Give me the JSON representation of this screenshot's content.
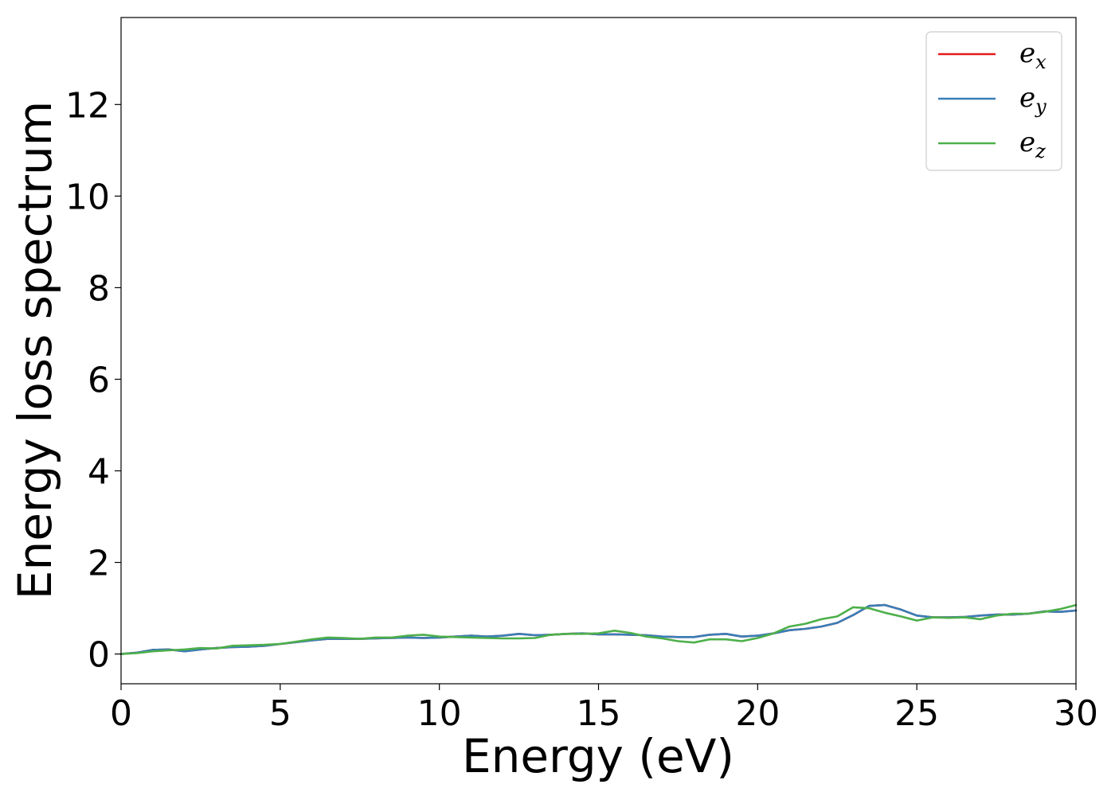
{
  "chart_data": {
    "type": "line",
    "xlabel": "Energy (eV)",
    "ylabel": "Energy loss spectrum",
    "xlim": [
      0,
      30
    ],
    "ylim": [
      -0.65,
      13.9
    ],
    "xticks": [
      "0",
      "5",
      "10",
      "15",
      "20",
      "25",
      "30"
    ],
    "yticks": [
      "0",
      "2",
      "4",
      "6",
      "8",
      "10",
      "12"
    ],
    "grid": false,
    "legend_position": "top-right",
    "series": [
      {
        "name": "e_x",
        "legend_base": "e",
        "legend_sub": "x",
        "color": "#e41a1c",
        "x": [
          0,
          0.5,
          1,
          1.5,
          2,
          2.5,
          3,
          3.5,
          4,
          4.5,
          5,
          5.5,
          6,
          6.5,
          7,
          7.5,
          8,
          8.5,
          9,
          9.5,
          10,
          10.5,
          11,
          11.5,
          12,
          12.5,
          13,
          13.5,
          14,
          14.5,
          15,
          15.5,
          16,
          16.5,
          17,
          17.5,
          18,
          18.5,
          19,
          19.5,
          20,
          20.5,
          21,
          21.5,
          22,
          22.5,
          23,
          23.5,
          24,
          24.5,
          25,
          25.5,
          26,
          26.5,
          27,
          27.5,
          28,
          28.5,
          29,
          29.5,
          30
        ],
        "y": [
          0.0,
          0.03,
          0.09,
          0.1,
          0.06,
          0.1,
          0.13,
          0.15,
          0.16,
          0.18,
          0.22,
          0.26,
          0.3,
          0.33,
          0.33,
          0.33,
          0.34,
          0.35,
          0.36,
          0.35,
          0.36,
          0.38,
          0.4,
          0.38,
          0.4,
          0.44,
          0.41,
          0.42,
          0.44,
          0.45,
          0.43,
          0.43,
          0.42,
          0.41,
          0.38,
          0.37,
          0.37,
          0.42,
          0.44,
          0.38,
          0.4,
          0.45,
          0.52,
          0.55,
          0.6,
          0.68,
          0.85,
          1.05,
          1.07,
          0.97,
          0.84,
          0.8,
          0.8,
          0.81,
          0.84,
          0.86,
          0.86,
          0.88,
          0.93,
          0.92,
          0.95
        ]
      },
      {
        "name": "e_y",
        "legend_base": "e",
        "legend_sub": "y",
        "color": "#377eb8",
        "x": [
          0,
          0.5,
          1,
          1.5,
          2,
          2.5,
          3,
          3.5,
          4,
          4.5,
          5,
          5.5,
          6,
          6.5,
          7,
          7.5,
          8,
          8.5,
          9,
          9.5,
          10,
          10.5,
          11,
          11.5,
          12,
          12.5,
          13,
          13.5,
          14,
          14.5,
          15,
          15.5,
          16,
          16.5,
          17,
          17.5,
          18,
          18.5,
          19,
          19.5,
          20,
          20.5,
          21,
          21.5,
          22,
          22.5,
          23,
          23.5,
          24,
          24.5,
          25,
          25.5,
          26,
          26.5,
          27,
          27.5,
          28,
          28.5,
          29,
          29.5,
          30
        ],
        "y": [
          0.0,
          0.03,
          0.09,
          0.1,
          0.06,
          0.1,
          0.13,
          0.15,
          0.16,
          0.18,
          0.22,
          0.26,
          0.3,
          0.33,
          0.33,
          0.33,
          0.34,
          0.35,
          0.36,
          0.35,
          0.36,
          0.38,
          0.4,
          0.38,
          0.4,
          0.44,
          0.41,
          0.42,
          0.44,
          0.45,
          0.43,
          0.43,
          0.42,
          0.41,
          0.38,
          0.37,
          0.37,
          0.42,
          0.44,
          0.38,
          0.4,
          0.45,
          0.52,
          0.55,
          0.6,
          0.68,
          0.85,
          1.05,
          1.07,
          0.97,
          0.84,
          0.8,
          0.8,
          0.81,
          0.84,
          0.86,
          0.86,
          0.88,
          0.93,
          0.92,
          0.95
        ]
      },
      {
        "name": "e_z",
        "legend_base": "e",
        "legend_sub": "z",
        "color": "#4daf4a",
        "x": [
          0,
          0.5,
          1,
          1.5,
          2,
          2.5,
          3,
          3.5,
          4,
          4.5,
          5,
          5.5,
          6,
          6.5,
          7,
          7.5,
          8,
          8.5,
          9,
          9.5,
          10,
          10.5,
          11,
          11.5,
          12,
          12.5,
          13,
          13.5,
          14,
          14.5,
          15,
          15.5,
          16,
          16.5,
          17,
          17.5,
          18,
          18.5,
          19,
          19.5,
          20,
          20.5,
          21,
          21.5,
          22,
          22.5,
          23,
          23.5,
          24,
          24.5,
          25,
          25.5,
          26,
          26.5,
          27,
          27.5,
          28,
          28.5,
          29,
          29.5,
          30
        ],
        "y": [
          0.0,
          0.02,
          0.06,
          0.08,
          0.1,
          0.13,
          0.12,
          0.18,
          0.19,
          0.2,
          0.22,
          0.27,
          0.32,
          0.36,
          0.35,
          0.33,
          0.36,
          0.36,
          0.4,
          0.42,
          0.38,
          0.37,
          0.36,
          0.35,
          0.34,
          0.34,
          0.35,
          0.42,
          0.44,
          0.44,
          0.45,
          0.51,
          0.46,
          0.38,
          0.34,
          0.28,
          0.25,
          0.32,
          0.32,
          0.28,
          0.35,
          0.45,
          0.6,
          0.66,
          0.76,
          0.82,
          1.02,
          1.0,
          0.9,
          0.82,
          0.73,
          0.8,
          0.79,
          0.8,
          0.76,
          0.84,
          0.88,
          0.88,
          0.92,
          0.98,
          1.07
        ]
      }
    ]
  }
}
